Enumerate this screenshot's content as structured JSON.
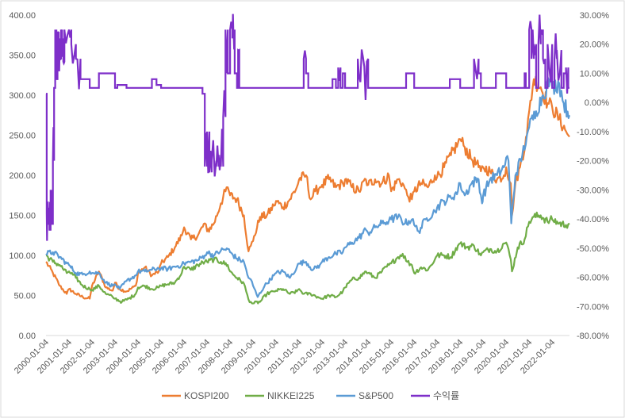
{
  "chart_data": {
    "type": "line",
    "title": "",
    "xlabel": "",
    "ylabel": "",
    "grid": "off",
    "legend_position": "bottom",
    "x_categories": [
      "2000-01-04",
      "2001-01-04",
      "2002-01-04",
      "2003-01-04",
      "2004-01-04",
      "2005-01-04",
      "2006-01-04",
      "2007-01-04",
      "2008-01-04",
      "2009-01-04",
      "2010-01-04",
      "2011-01-04",
      "2012-01-04",
      "2013-01-04",
      "2014-01-04",
      "2015-01-04",
      "2016-01-04",
      "2017-01-04",
      "2018-01-04",
      "2019-01-04",
      "2020-01-04",
      "2021-01-04",
      "2022-01-04"
    ],
    "x_range_years": [
      2000.0,
      2022.75
    ],
    "y_left": {
      "ylim": [
        0,
        400
      ],
      "ticks": [
        "0.00",
        "50.00",
        "100.00",
        "150.00",
        "200.00",
        "250.00",
        "300.00",
        "350.00",
        "400.00"
      ]
    },
    "y_right": {
      "ylim": [
        -80,
        30
      ],
      "ticks": [
        "-80.00%",
        "-70.00%",
        "-60.00%",
        "-50.00%",
        "-40.00%",
        "-30.00%",
        "-20.00%",
        "-10.00%",
        "0.00%",
        "10.00%",
        "20.00%",
        "30.00%"
      ]
    },
    "series": [
      {
        "name": "KOSPI200",
        "axis": "left",
        "color": "#ED7D31",
        "x": [
          2000.0,
          2000.3,
          2000.6,
          2000.9,
          2001.0,
          2001.3,
          2001.6,
          2001.9,
          2002.0,
          2002.3,
          2002.6,
          2002.9,
          2003.0,
          2003.2,
          2003.5,
          2003.9,
          2004.0,
          2004.3,
          2004.6,
          2004.9,
          2005.0,
          2005.3,
          2005.6,
          2005.9,
          2006.0,
          2006.3,
          2006.6,
          2006.9,
          2007.0,
          2007.3,
          2007.6,
          2007.8,
          2007.9,
          2008.0,
          2008.3,
          2008.6,
          2008.8,
          2008.9,
          2009.0,
          2009.3,
          2009.6,
          2009.9,
          2010.0,
          2010.3,
          2010.6,
          2010.9,
          2011.0,
          2011.3,
          2011.5,
          2011.7,
          2011.9,
          2012.0,
          2012.3,
          2012.6,
          2012.9,
          2013.0,
          2013.3,
          2013.6,
          2013.9,
          2014.0,
          2014.3,
          2014.6,
          2014.9,
          2015.0,
          2015.3,
          2015.5,
          2015.7,
          2015.9,
          2016.0,
          2016.3,
          2016.6,
          2016.9,
          2017.0,
          2017.3,
          2017.6,
          2017.9,
          2018.0,
          2018.2,
          2018.5,
          2018.8,
          2018.9,
          2019.0,
          2019.3,
          2019.6,
          2019.9,
          2020.0,
          2020.2,
          2020.25,
          2020.4,
          2020.6,
          2020.9,
          2021.0,
          2021.2,
          2021.5,
          2021.8,
          2022.0,
          2022.3,
          2022.6,
          2022.75
        ],
        "values": [
          92,
          78,
          62,
          52,
          58,
          52,
          48,
          46,
          62,
          80,
          60,
          56,
          66,
          58,
          55,
          62,
          78,
          85,
          75,
          80,
          90,
          98,
          110,
          125,
          135,
          120,
          125,
          140,
          130,
          140,
          165,
          180,
          185,
          175,
          170,
          150,
          105,
          112,
          118,
          148,
          150,
          162,
          168,
          160,
          170,
          185,
          195,
          200,
          170,
          180,
          185,
          188,
          195,
          185,
          190,
          195,
          185,
          180,
          195,
          188,
          195,
          190,
          200,
          180,
          195,
          190,
          175,
          170,
          180,
          190,
          185,
          200,
          198,
          210,
          225,
          240,
          245,
          235,
          220,
          210,
          205,
          210,
          205,
          195,
          200,
          210,
          190,
          150,
          190,
          210,
          250,
          280,
          320,
          310,
          290,
          285,
          270,
          255,
          248
        ]
      },
      {
        "name": "NIKKEI225",
        "axis": "left",
        "color": "#70AD47",
        "x": [
          2000.0,
          2000.3,
          2000.6,
          2000.9,
          2001.0,
          2001.3,
          2001.6,
          2001.9,
          2002.0,
          2002.3,
          2002.6,
          2002.9,
          2003.0,
          2003.3,
          2003.6,
          2003.9,
          2004.0,
          2004.3,
          2004.6,
          2004.9,
          2005.0,
          2005.3,
          2005.6,
          2005.9,
          2006.0,
          2006.3,
          2006.6,
          2006.9,
          2007.0,
          2007.3,
          2007.6,
          2007.9,
          2008.0,
          2008.3,
          2008.6,
          2008.8,
          2008.9,
          2009.0,
          2009.3,
          2009.6,
          2009.9,
          2010.0,
          2010.3,
          2010.6,
          2010.9,
          2011.0,
          2011.2,
          2011.5,
          2011.9,
          2012.0,
          2012.3,
          2012.6,
          2012.9,
          2013.0,
          2013.3,
          2013.6,
          2013.9,
          2014.0,
          2014.3,
          2014.6,
          2014.9,
          2015.0,
          2015.3,
          2015.5,
          2015.7,
          2015.9,
          2016.0,
          2016.3,
          2016.6,
          2016.9,
          2017.0,
          2017.3,
          2017.6,
          2017.9,
          2018.0,
          2018.3,
          2018.6,
          2018.9,
          2019.0,
          2019.3,
          2019.6,
          2019.9,
          2020.0,
          2020.2,
          2020.25,
          2020.5,
          2020.8,
          2021.0,
          2021.2,
          2021.5,
          2021.8,
          2022.0,
          2022.3,
          2022.6,
          2022.75
        ],
        "values": [
          100,
          92,
          88,
          78,
          80,
          72,
          62,
          58,
          57,
          62,
          52,
          48,
          46,
          42,
          46,
          52,
          60,
          62,
          58,
          60,
          62,
          64,
          66,
          78,
          86,
          82,
          88,
          92,
          92,
          95,
          92,
          88,
          80,
          72,
          65,
          45,
          42,
          40,
          42,
          52,
          55,
          56,
          58,
          52,
          55,
          58,
          52,
          52,
          47,
          46,
          50,
          48,
          55,
          60,
          70,
          72,
          80,
          78,
          72,
          80,
          88,
          90,
          98,
          102,
          92,
          88,
          78,
          85,
          82,
          95,
          100,
          100,
          98,
          112,
          115,
          110,
          112,
          100,
          104,
          108,
          105,
          115,
          116,
          95,
          80,
          110,
          120,
          142,
          148,
          150,
          142,
          145,
          140,
          138,
          140
        ]
      },
      {
        "name": "S&P500",
        "axis": "left",
        "color": "#5B9BD5",
        "x": [
          2000.0,
          2000.3,
          2000.6,
          2000.9,
          2001.0,
          2001.3,
          2001.6,
          2001.9,
          2002.0,
          2002.3,
          2002.6,
          2002.9,
          2003.0,
          2003.2,
          2003.5,
          2003.9,
          2004.0,
          2004.3,
          2004.6,
          2004.9,
          2005.0,
          2005.3,
          2005.6,
          2005.9,
          2006.0,
          2006.3,
          2006.6,
          2006.9,
          2007.0,
          2007.3,
          2007.6,
          2007.9,
          2008.0,
          2008.3,
          2008.6,
          2008.8,
          2008.9,
          2009.0,
          2009.2,
          2009.5,
          2009.9,
          2010.0,
          2010.3,
          2010.6,
          2010.9,
          2011.0,
          2011.3,
          2011.6,
          2011.9,
          2012.0,
          2012.3,
          2012.6,
          2012.9,
          2013.0,
          2013.3,
          2013.6,
          2013.9,
          2014.0,
          2014.3,
          2014.6,
          2014.9,
          2015.0,
          2015.3,
          2015.6,
          2015.9,
          2016.0,
          2016.2,
          2016.5,
          2016.9,
          2017.0,
          2017.3,
          2017.6,
          2017.9,
          2018.0,
          2018.2,
          2018.5,
          2018.8,
          2018.95,
          2019.0,
          2019.3,
          2019.6,
          2019.9,
          2020.0,
          2020.1,
          2020.22,
          2020.4,
          2020.7,
          2020.9,
          2021.0,
          2021.3,
          2021.6,
          2021.9,
          2022.0,
          2022.3,
          2022.5,
          2022.75
        ],
        "values": [
          102,
          104,
          98,
          90,
          88,
          78,
          76,
          80,
          78,
          78,
          66,
          62,
          64,
          58,
          68,
          75,
          80,
          80,
          82,
          84,
          84,
          83,
          86,
          88,
          90,
          92,
          94,
          100,
          104,
          100,
          106,
          108,
          104,
          96,
          92,
          72,
          70,
          62,
          48,
          62,
          75,
          78,
          80,
          72,
          85,
          90,
          92,
          82,
          88,
          92,
          98,
          102,
          104,
          110,
          116,
          122,
          132,
          128,
          135,
          140,
          143,
          145,
          148,
          140,
          145,
          138,
          130,
          145,
          155,
          160,
          168,
          172,
          180,
          190,
          175,
          190,
          195,
          165,
          175,
          195,
          200,
          210,
          222,
          218,
          140,
          200,
          225,
          250,
          260,
          280,
          300,
          320,
          310,
          315,
          290,
          275
        ]
      },
      {
        "name": "수익률",
        "axis": "right",
        "color": "#7E2FC9",
        "x": [
          2000.0,
          2000.03,
          2000.06,
          2000.1,
          2000.15,
          2000.2,
          2000.25,
          2000.3,
          2000.35,
          2000.4,
          2000.45,
          2000.5,
          2000.55,
          2000.6,
          2000.65,
          2000.7,
          2000.75,
          2000.8,
          2001.0,
          2001.1,
          2001.3,
          2001.5,
          2001.6,
          2001.9,
          2002.0,
          2002.2,
          2002.3,
          2003.0,
          2003.1,
          2003.5,
          2003.6,
          2004.0,
          2004.5,
          2004.6,
          2004.8,
          2005.0,
          2006.0,
          2006.5,
          2006.8,
          2006.9,
          2007.0,
          2007.1,
          2007.2,
          2007.4,
          2007.5,
          2007.6,
          2007.7,
          2007.8,
          2007.9,
          2008.0,
          2008.1,
          2008.15,
          2008.2,
          2008.3,
          2008.35,
          2008.4,
          2008.6,
          2008.65,
          2008.8,
          2009.0,
          2010.0,
          2011.0,
          2011.2,
          2011.3,
          2011.4,
          2011.5,
          2012.0,
          2012.4,
          2012.45,
          2012.6,
          2012.7,
          2012.8,
          2012.9,
          2013.0,
          2013.5,
          2013.55,
          2014.0,
          2015.0,
          2015.6,
          2015.65,
          2016.0,
          2017.0,
          2017.5,
          2017.55,
          2018.0,
          2018.5,
          2018.6,
          2018.8,
          2018.9,
          2019.0,
          2019.5,
          2019.55,
          2020.0,
          2020.5,
          2020.6,
          2020.7,
          2020.75,
          2020.8,
          2020.85,
          2020.9,
          2021.0,
          2021.1,
          2021.2,
          2021.3,
          2021.4,
          2021.5,
          2021.6,
          2021.7,
          2021.8,
          2022.0,
          2022.1,
          2022.2,
          2022.4,
          2022.5,
          2022.6,
          2022.7,
          2022.75
        ],
        "values": [
          3,
          -38,
          -42,
          -40,
          -44,
          -30,
          -42,
          -20,
          5,
          25,
          8,
          24,
          22,
          15,
          25,
          22,
          14,
          25,
          25,
          20,
          15,
          8,
          8,
          5,
          5,
          5,
          10,
          5,
          6,
          5,
          5,
          5,
          5,
          8,
          6,
          5,
          5,
          5,
          3,
          -22,
          -10,
          -24,
          -20,
          -22,
          -18,
          -22,
          -5,
          25,
          10,
          25,
          22,
          25,
          10,
          5,
          18,
          5,
          5,
          5,
          5,
          5,
          5,
          5,
          15,
          10,
          5,
          5,
          5,
          5,
          8,
          5,
          12,
          5,
          10,
          5,
          5,
          15,
          5,
          5,
          5,
          10,
          5,
          5,
          5,
          8,
          5,
          5,
          15,
          10,
          5,
          5,
          5,
          10,
          5,
          5,
          5,
          5,
          5,
          10,
          5,
          5,
          25,
          15,
          20,
          5,
          20,
          25,
          15,
          5,
          20,
          5,
          15,
          18,
          5,
          10,
          12,
          5,
          5
        ]
      }
    ]
  }
}
